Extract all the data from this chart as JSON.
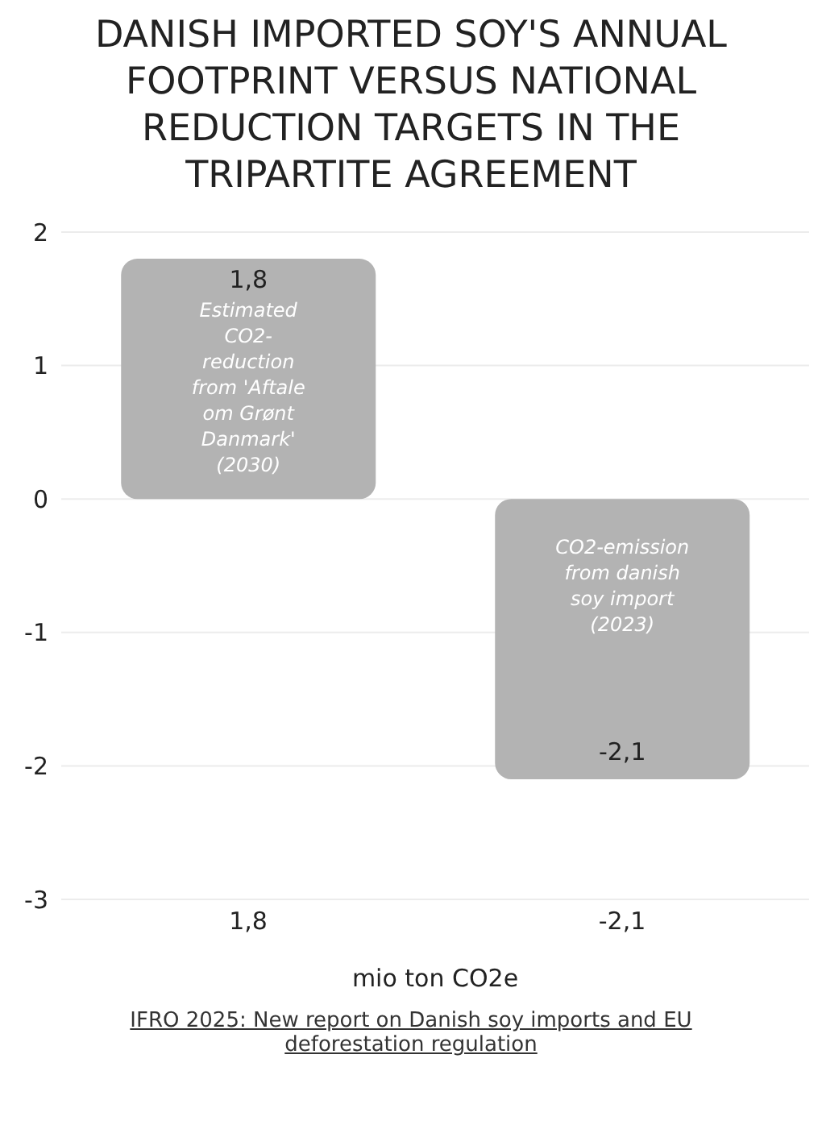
{
  "chart_data": {
    "type": "bar",
    "title": "DANISH IMPORTED SOY'S ANNUAL FOOTPRINT VERSUS NATIONAL REDUCTION TARGETS IN THE TRIPARTITE AGREEMENT",
    "categories": [
      "1,8",
      "-2,1"
    ],
    "values": [
      1.8,
      -2.1
    ],
    "value_labels": [
      "1,8",
      "-2,1"
    ],
    "color": "#b3b3b3",
    "xlabel": "mio ton CO2e",
    "ylim": [
      -3,
      2
    ],
    "yticks": [
      2,
      1,
      0,
      -1,
      -2,
      -3
    ],
    "grid": "y",
    "annotations": [
      "Estimated CO2-reduction from 'Aftale om Grønt Danmark' (2030)",
      "CO2-emission from danish soy import (2023)",
      "IFRO 2025: New report on Danish soy imports and EU deforestation regulation"
    ]
  }
}
